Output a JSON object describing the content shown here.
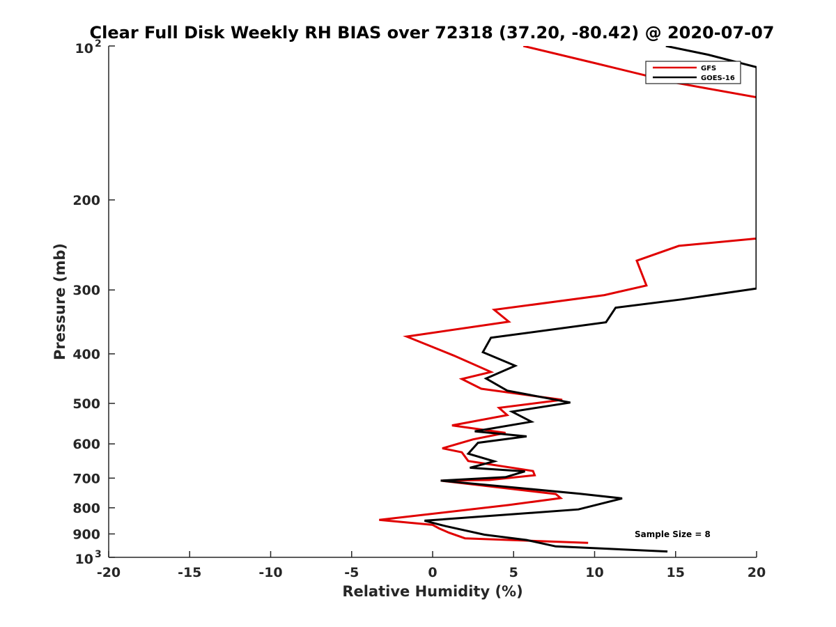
{
  "chart_data": {
    "type": "line",
    "title": "Clear Full Disk Weekly RH BIAS over 72318 (37.20, -80.42) @ 2020-07-07",
    "xlabel": "Relative Humidity (%)",
    "ylabel": "Pressure (mb)",
    "xlim": [
      -20,
      20
    ],
    "ylim": [
      100,
      1000
    ],
    "yscale": "log",
    "y_reversed": true,
    "grid": false,
    "legend_position": "top-right",
    "x_ticks": [
      "-20",
      "-15",
      "-10",
      "-5",
      "0",
      "5",
      "10",
      "15",
      "20"
    ],
    "y_ticks": [
      "200",
      "300",
      "400",
      "500",
      "600",
      "700",
      "800",
      "900"
    ],
    "y_tick_top": {
      "base": "10",
      "exp": "2"
    },
    "y_tick_bottom": {
      "base": "10",
      "exp": "3"
    },
    "annotation": "Sample Size = 8",
    "series": [
      {
        "name": "GFS",
        "color": "#e00000",
        "points": [
          [
            5.6,
            100
          ],
          [
            10.0,
            108
          ],
          [
            15.0,
            118
          ],
          [
            20.0,
            126
          ],
          [
            20.0,
            238
          ],
          [
            15.2,
            246
          ],
          [
            12.6,
            263
          ],
          [
            13.2,
            294
          ],
          [
            10.6,
            307
          ],
          [
            3.8,
            328
          ],
          [
            4.7,
            346
          ],
          [
            -1.6,
            370
          ],
          [
            1.3,
            403
          ],
          [
            3.6,
            434
          ],
          [
            1.8,
            448
          ],
          [
            3.0,
            468
          ],
          [
            8.0,
            492
          ],
          [
            4.1,
            510
          ],
          [
            4.6,
            527
          ],
          [
            1.2,
            552
          ],
          [
            4.5,
            571
          ],
          [
            2.5,
            588
          ],
          [
            0.6,
            612
          ],
          [
            1.8,
            623
          ],
          [
            2.2,
            648
          ],
          [
            6.2,
            678
          ],
          [
            6.3,
            691
          ],
          [
            3.5,
            706
          ],
          [
            0.5,
            708
          ],
          [
            7.6,
            752
          ],
          [
            7.9,
            766
          ],
          [
            4.7,
            790
          ],
          [
            -3.3,
            845
          ],
          [
            0.0,
            864
          ],
          [
            0.4,
            878
          ],
          [
            1.0,
            895
          ],
          [
            2.0,
            918
          ],
          [
            9.6,
            937
          ]
        ]
      },
      {
        "name": "GOES-16",
        "color": "#000000",
        "points": [
          [
            14.4,
            100
          ],
          [
            17.0,
            104
          ],
          [
            20.0,
            110
          ],
          [
            20.0,
            298
          ],
          [
            15.4,
            313
          ],
          [
            11.3,
            325
          ],
          [
            10.7,
            347
          ],
          [
            3.6,
            372
          ],
          [
            3.1,
            397
          ],
          [
            5.1,
            422
          ],
          [
            3.3,
            447
          ],
          [
            4.6,
            472
          ],
          [
            8.5,
            498
          ],
          [
            4.9,
            519
          ],
          [
            6.1,
            543
          ],
          [
            2.6,
            567
          ],
          [
            5.8,
            580
          ],
          [
            2.8,
            597
          ],
          [
            2.2,
            627
          ],
          [
            3.8,
            649
          ],
          [
            2.3,
            668
          ],
          [
            5.7,
            679
          ],
          [
            4.5,
            697
          ],
          [
            0.5,
            708
          ],
          [
            9.1,
            751
          ],
          [
            11.7,
            767
          ],
          [
            10.5,
            784
          ],
          [
            9.0,
            806
          ],
          [
            -0.5,
            848
          ],
          [
            0.8,
            869
          ],
          [
            3.2,
            903
          ],
          [
            5.8,
            925
          ],
          [
            7.6,
            952
          ],
          [
            14.5,
            974
          ]
        ]
      }
    ]
  }
}
